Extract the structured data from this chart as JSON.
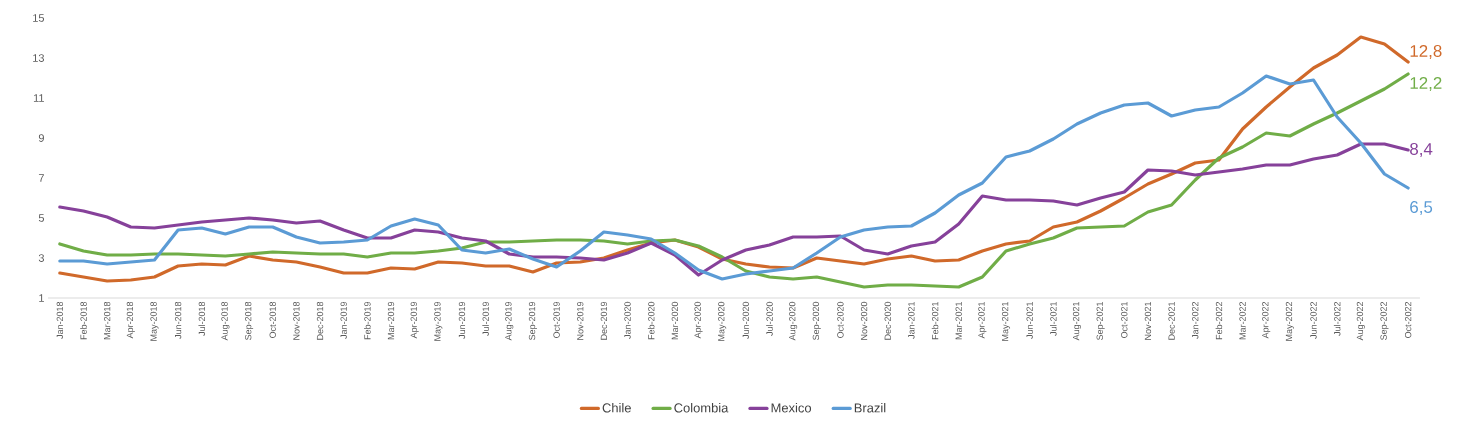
{
  "chart_data": {
    "type": "line",
    "categories": [
      "Jan-2018",
      "Feb-2018",
      "Mar-2018",
      "Apr-2018",
      "May-2018",
      "Jun-2018",
      "Jul-2018",
      "Aug-2018",
      "Sep-2018",
      "Oct-2018",
      "Nov-2018",
      "Dec-2018",
      "Jan-2019",
      "Feb-2019",
      "Mar-2019",
      "Apr-2019",
      "May-2019",
      "Jun-2019",
      "Jul-2019",
      "Aug-2019",
      "Sep-2019",
      "Oct-2019",
      "Nov-2019",
      "Dec-2019",
      "Jan-2020",
      "Feb-2020",
      "Mar-2020",
      "Apr-2020",
      "May-2020",
      "Jun-2020",
      "Jul-2020",
      "Aug-2020",
      "Sep-2020",
      "Oct-2020",
      "Nov-2020",
      "Dec-2020",
      "Jan-2021",
      "Feb-2021",
      "Mar-2021",
      "Apr-2021",
      "May-2021",
      "Jun-2021",
      "Jul-2021",
      "Aug-2021",
      "Sep-2021",
      "Oct-2021",
      "Nov-2021",
      "Dec-2021",
      "Jan-2022",
      "Feb-2022",
      "Mar-2022",
      "Apr-2022",
      "May-2022",
      "Jun-2022",
      "Jul-2022",
      "Aug-2022",
      "Sep-2022",
      "Oct-2022"
    ],
    "series": [
      {
        "name": "Chile",
        "color": "#d0692a",
        "values": [
          2.25,
          2.05,
          1.85,
          1.9,
          2.05,
          2.6,
          2.7,
          2.65,
          3.1,
          2.9,
          2.8,
          2.55,
          2.25,
          2.25,
          2.5,
          2.45,
          2.8,
          2.75,
          2.6,
          2.6,
          2.3,
          2.75,
          2.8,
          3.0,
          3.4,
          3.75,
          3.9,
          3.55,
          2.95,
          2.7,
          2.55,
          2.5,
          3.0,
          2.85,
          2.7,
          2.95,
          3.1,
          2.85,
          2.9,
          3.35,
          3.7,
          3.85,
          4.55,
          4.8,
          5.35,
          6.0,
          6.7,
          7.2,
          7.75,
          7.9,
          9.45,
          10.55,
          11.55,
          12.5,
          13.15,
          14.05,
          13.7,
          12.8
        ],
        "value_labels": [
          null,
          null,
          null,
          null,
          null,
          null,
          null,
          null,
          null,
          null,
          null,
          null,
          null,
          null,
          null,
          null,
          null,
          null,
          null,
          null,
          null,
          null,
          null,
          null,
          null,
          null,
          null,
          null,
          null,
          null,
          null,
          null,
          null,
          null,
          null,
          null,
          null,
          null,
          null,
          null,
          null,
          null,
          null,
          null,
          null,
          null,
          null,
          null,
          null,
          null,
          null,
          null,
          null,
          null,
          null,
          null,
          null,
          "12,8"
        ]
      },
      {
        "name": "Colombia",
        "color": "#70ad47",
        "values": [
          3.7,
          3.35,
          3.15,
          3.15,
          3.2,
          3.2,
          3.15,
          3.1,
          3.2,
          3.3,
          3.25,
          3.2,
          3.2,
          3.05,
          3.25,
          3.25,
          3.35,
          3.5,
          3.8,
          3.8,
          3.85,
          3.9,
          3.9,
          3.85,
          3.7,
          3.85,
          3.9,
          3.6,
          3.05,
          2.35,
          2.05,
          1.95,
          2.05,
          1.8,
          1.55,
          1.65,
          1.65,
          1.6,
          1.55,
          2.05,
          3.35,
          3.7,
          4.0,
          4.5,
          4.55,
          4.6,
          5.3,
          5.65,
          6.9,
          8.0,
          8.55,
          9.25,
          9.1,
          9.7,
          10.25,
          10.85,
          11.45,
          12.2
        ],
        "value_labels": [
          null,
          null,
          null,
          null,
          null,
          null,
          null,
          null,
          null,
          null,
          null,
          null,
          null,
          null,
          null,
          null,
          null,
          null,
          null,
          null,
          null,
          null,
          null,
          null,
          null,
          null,
          null,
          null,
          null,
          null,
          null,
          null,
          null,
          null,
          null,
          null,
          null,
          null,
          null,
          null,
          null,
          null,
          null,
          null,
          null,
          null,
          null,
          null,
          null,
          null,
          null,
          null,
          null,
          null,
          null,
          null,
          null,
          "12,2"
        ]
      },
      {
        "name": "Mexico",
        "color": "#86419a",
        "values": [
          5.55,
          5.35,
          5.05,
          4.55,
          4.5,
          4.65,
          4.8,
          4.9,
          5.0,
          4.9,
          4.75,
          4.85,
          4.4,
          4.0,
          4.0,
          4.4,
          4.3,
          4.0,
          3.85,
          3.2,
          3.05,
          3.05,
          3.0,
          2.9,
          3.25,
          3.75,
          3.15,
          2.15,
          2.9,
          3.4,
          3.65,
          4.05,
          4.05,
          4.1,
          3.4,
          3.2,
          3.6,
          3.8,
          4.7,
          6.1,
          5.9,
          5.9,
          5.85,
          5.65,
          6.0,
          6.3,
          7.4,
          7.35,
          7.15,
          7.3,
          7.45,
          7.65,
          7.65,
          7.95,
          8.15,
          8.7,
          8.7,
          8.4
        ],
        "value_labels": [
          null,
          null,
          null,
          null,
          null,
          null,
          null,
          null,
          null,
          null,
          null,
          null,
          null,
          null,
          null,
          null,
          null,
          null,
          null,
          null,
          null,
          null,
          null,
          null,
          null,
          null,
          null,
          null,
          null,
          null,
          null,
          null,
          null,
          null,
          null,
          null,
          null,
          null,
          null,
          null,
          null,
          null,
          null,
          null,
          null,
          null,
          null,
          null,
          null,
          null,
          null,
          null,
          null,
          null,
          null,
          null,
          null,
          "8,4"
        ]
      },
      {
        "name": "Brazil",
        "color": "#5b9bd5",
        "values": [
          2.85,
          2.85,
          2.7,
          2.8,
          2.9,
          4.4,
          4.5,
          4.2,
          4.55,
          4.55,
          4.05,
          3.75,
          3.8,
          3.9,
          4.6,
          4.95,
          4.65,
          3.4,
          3.25,
          3.45,
          2.95,
          2.55,
          3.35,
          4.3,
          4.15,
          3.95,
          3.25,
          2.4,
          1.95,
          2.2,
          2.35,
          2.5,
          3.25,
          4.05,
          4.4,
          4.55,
          4.6,
          5.25,
          6.15,
          6.75,
          8.05,
          8.35,
          8.95,
          9.7,
          10.25,
          10.65,
          10.75,
          10.1,
          10.4,
          10.55,
          11.25,
          12.1,
          11.7,
          11.9,
          10.05,
          8.75,
          7.2,
          6.5
        ],
        "value_labels": [
          null,
          null,
          null,
          null,
          null,
          null,
          null,
          null,
          null,
          null,
          null,
          null,
          null,
          null,
          null,
          null,
          null,
          null,
          null,
          null,
          null,
          null,
          null,
          null,
          null,
          null,
          null,
          null,
          null,
          null,
          null,
          null,
          null,
          null,
          null,
          null,
          null,
          null,
          null,
          null,
          null,
          null,
          null,
          null,
          null,
          null,
          null,
          null,
          null,
          null,
          null,
          null,
          null,
          null,
          null,
          null,
          null,
          "6,5"
        ]
      }
    ],
    "ylim": [
      1,
      15
    ],
    "yticks": [
      1,
      3,
      5,
      7,
      9,
      11,
      13,
      15
    ],
    "legend": "bottom",
    "grid": false,
    "marker": "none",
    "line_style": "solid"
  }
}
